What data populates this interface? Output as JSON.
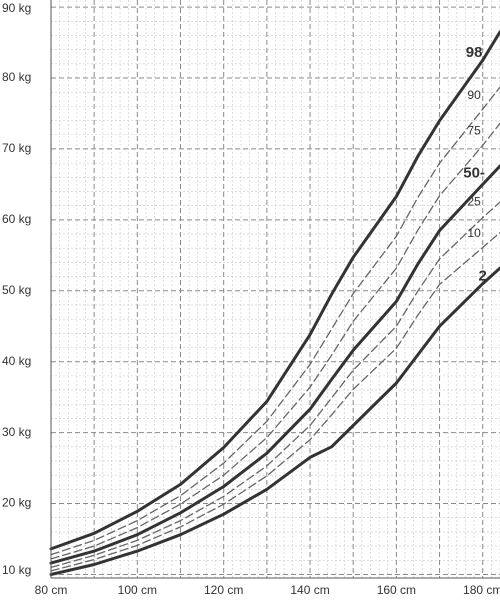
{
  "chart_data": {
    "type": "line",
    "title": "",
    "xlabel": "",
    "ylabel": "",
    "xlim": [
      80,
      184
    ],
    "ylim": [
      9.5,
      91
    ],
    "x_ticks": [
      80,
      100,
      120,
      140,
      160,
      180
    ],
    "x_tick_labels": [
      "80 cm",
      "100 cm",
      "120 cm",
      "140 cm",
      "160 cm",
      "180 cm"
    ],
    "y_ticks": [
      10,
      20,
      30,
      40,
      50,
      60,
      70,
      80,
      90
    ],
    "y_tick_labels": [
      "10 kg",
      "20 kg",
      "30 kg",
      "40 kg",
      "50 kg",
      "60 kg",
      "70 kg",
      "80 kg",
      "90 kg"
    ],
    "grid": true,
    "line_color": "#333333",
    "dash_color": "#666666",
    "x": [
      80,
      90,
      100,
      110,
      120,
      130,
      140,
      145,
      150,
      160,
      165,
      170,
      180,
      184
    ],
    "series": [
      {
        "name": "98",
        "style": "solid",
        "values": [
          13.6,
          15.8,
          18.9,
          22.7,
          27.9,
          34.4,
          43.8,
          49.5,
          54.7,
          63.3,
          69.0,
          74.0,
          82.5,
          86.5
        ]
      },
      {
        "name": "90",
        "style": "dashed",
        "values": [
          12.8,
          14.8,
          17.6,
          21.1,
          25.7,
          31.6,
          39.6,
          44.6,
          49.6,
          57.7,
          63.2,
          68.0,
          75.6,
          78.7
        ]
      },
      {
        "name": "75",
        "style": "dashed",
        "values": [
          12.2,
          14.0,
          16.6,
          19.9,
          24.0,
          29.3,
          36.4,
          40.9,
          45.7,
          53.2,
          58.6,
          63.4,
          70.5,
          73.6
        ]
      },
      {
        "name": "50",
        "style": "solid",
        "values": [
          11.6,
          13.3,
          15.6,
          18.7,
          22.4,
          27.1,
          33.3,
          37.5,
          41.6,
          48.5,
          53.8,
          58.5,
          65.0,
          67.6
        ]
      },
      {
        "name": "25",
        "style": "dashed",
        "values": [
          11.0,
          12.7,
          14.8,
          17.6,
          21.0,
          25.3,
          31.0,
          34.9,
          38.8,
          45.0,
          50.0,
          54.5,
          60.3,
          62.5
        ]
      },
      {
        "name": "10",
        "style": "dashed",
        "values": [
          10.5,
          12.1,
          14.1,
          16.7,
          19.9,
          23.9,
          29.0,
          32.5,
          36.1,
          41.9,
          46.6,
          50.9,
          56.1,
          58.2
        ]
      },
      {
        "name": "2",
        "style": "solid",
        "values": [
          10.0,
          11.4,
          13.3,
          15.6,
          18.5,
          22.0,
          26.5,
          28.0,
          31.0,
          37.0,
          41.0,
          45.0,
          51.0,
          53.2
        ]
      }
    ],
    "percentile_labels": [
      {
        "text": "98",
        "x": 178,
        "y": 83.5,
        "size": "large"
      },
      {
        "text": "90",
        "x": 178,
        "y": 77.5,
        "size": "small"
      },
      {
        "text": "75",
        "x": 178,
        "y": 72.5,
        "size": "small"
      },
      {
        "text": "50-",
        "x": 178,
        "y": 66.5,
        "size": "large"
      },
      {
        "text": "25",
        "x": 178,
        "y": 62.5,
        "size": "small"
      },
      {
        "text": "10",
        "x": 178,
        "y": 58,
        "size": "small"
      },
      {
        "text": "2",
        "x": 180,
        "y": 52,
        "size": "large"
      }
    ]
  }
}
